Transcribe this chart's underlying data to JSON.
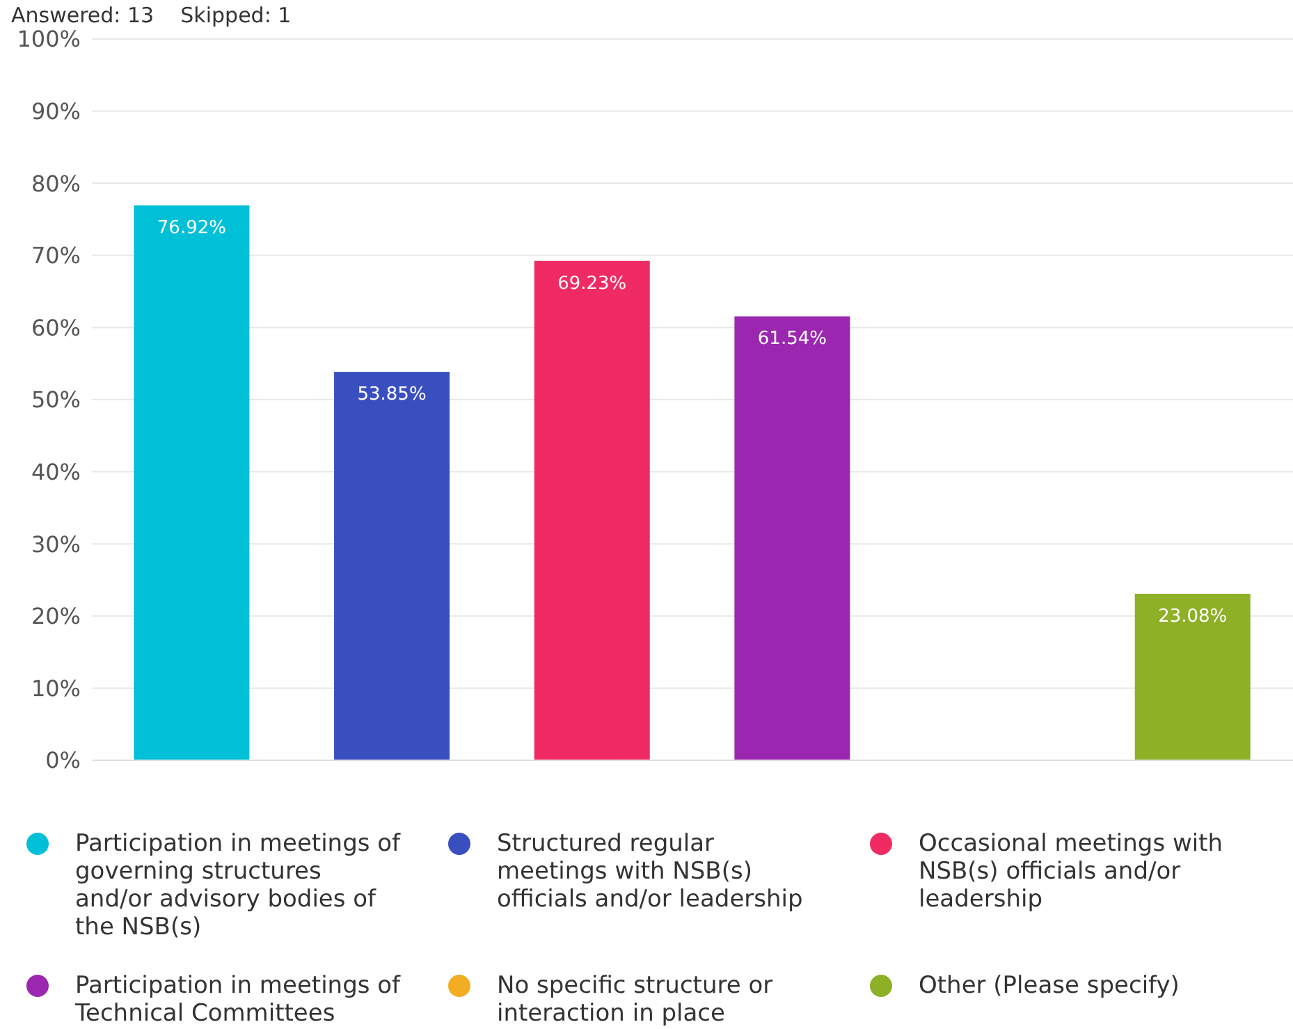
{
  "chart_data": {
    "type": "bar",
    "stacked": true,
    "categories": [
      null,
      null,
      null,
      null,
      null,
      null
    ],
    "annotations": [
      "Answered: 13    Skipped: 1"
    ],
    "series": [
      {
        "name": "Participation in meetings of governing structures and/or advisory bodies of the NSB(s)",
        "color": "#00c0d7",
        "values": [
          76.92,
          null,
          null,
          null,
          null,
          null
        ],
        "value_labels": [
          "76.92%",
          null,
          null,
          null,
          null,
          null
        ]
      },
      {
        "name": "Structured regular meetings with NSB(s) officials and/or leadership",
        "color": "#3a4fbf",
        "values": [
          null,
          53.85,
          null,
          null,
          null,
          null
        ],
        "value_labels": [
          null,
          "53.85%",
          null,
          null,
          null,
          null
        ]
      },
      {
        "name": "Occasional meetings with NSB(s) officials and/or leadership",
        "color": "#f02a62",
        "values": [
          null,
          null,
          69.23,
          null,
          null,
          null
        ],
        "value_labels": [
          null,
          null,
          "69.23%",
          null,
          null,
          null
        ]
      },
      {
        "name": "Participation in meetings of Technical Committees",
        "color": "#9b27b0",
        "values": [
          null,
          null,
          null,
          61.54,
          null,
          null
        ],
        "value_labels": [
          null,
          null,
          null,
          "61.54%",
          null,
          null
        ]
      },
      {
        "name": "No specific structure or interaction in place",
        "color": "#f2ad22",
        "values": [
          null,
          null,
          null,
          null,
          0,
          null
        ],
        "value_labels": [
          null,
          null,
          null,
          null,
          null,
          null
        ]
      },
      {
        "name": "Other (Please specify)",
        "color": "#8db026",
        "values": [
          null,
          null,
          null,
          null,
          null,
          23.08
        ],
        "value_labels": [
          null,
          null,
          null,
          null,
          null,
          "23.08%"
        ]
      }
    ],
    "ylim": [
      0,
      100
    ],
    "yticks": [
      {
        "value": 0,
        "label": "0%"
      },
      {
        "value": 10,
        "label": "10%"
      },
      {
        "value": 20,
        "label": "20%"
      },
      {
        "value": 30,
        "label": "30%"
      },
      {
        "value": 40,
        "label": "40%"
      },
      {
        "value": 50,
        "label": "50%"
      },
      {
        "value": 60,
        "label": "60%"
      },
      {
        "value": 70,
        "label": "70%"
      },
      {
        "value": 80,
        "label": "80%"
      },
      {
        "value": 90,
        "label": "90%"
      },
      {
        "value": 100,
        "label": "100%"
      }
    ],
    "grid": "y",
    "legend": "bottom",
    "tick_labels": "y"
  }
}
